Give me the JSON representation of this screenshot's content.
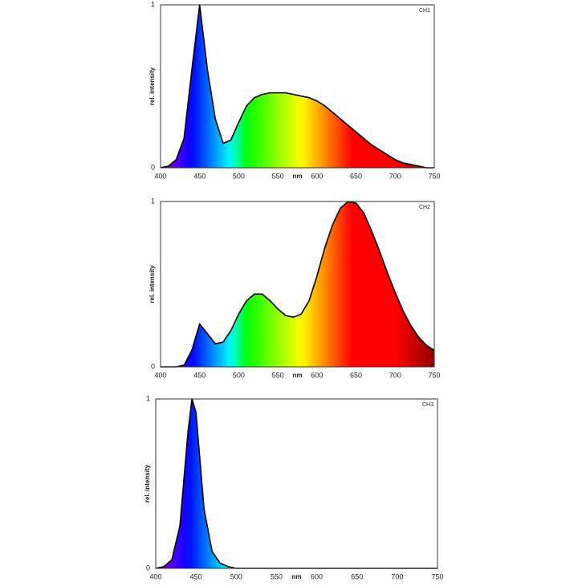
{
  "chart_data": [
    {
      "type": "area",
      "title": "CH1",
      "xlabel": "nm",
      "ylabel": "rel. intensity",
      "x": [
        400,
        410,
        420,
        430,
        440,
        450,
        460,
        470,
        480,
        490,
        500,
        510,
        520,
        530,
        540,
        550,
        560,
        570,
        580,
        590,
        600,
        610,
        620,
        630,
        640,
        650,
        660,
        670,
        680,
        690,
        700,
        710,
        720,
        730,
        740,
        750
      ],
      "values": [
        0,
        0.01,
        0.05,
        0.18,
        0.6,
        1,
        0.6,
        0.3,
        0.15,
        0.17,
        0.28,
        0.38,
        0.43,
        0.45,
        0.46,
        0.46,
        0.46,
        0.45,
        0.44,
        0.43,
        0.41,
        0.38,
        0.34,
        0.3,
        0.26,
        0.22,
        0.18,
        0.14,
        0.11,
        0.08,
        0.05,
        0.03,
        0.02,
        0.01,
        0,
        0
      ],
      "color": "#000000",
      "xlim": [
        400,
        750
      ],
      "ylim": [
        0,
        1
      ],
      "xticks": [
        400,
        450,
        500,
        550,
        600,
        650,
        700,
        750
      ],
      "yticks": [
        0,
        1
      ],
      "grid": false
    },
    {
      "type": "area",
      "title": "CH2",
      "xlabel": "nm",
      "ylabel": "rel. intensity",
      "x": [
        400,
        410,
        420,
        430,
        440,
        450,
        460,
        470,
        480,
        490,
        500,
        510,
        520,
        530,
        540,
        550,
        560,
        570,
        580,
        590,
        600,
        610,
        620,
        630,
        640,
        650,
        660,
        670,
        680,
        690,
        700,
        710,
        720,
        730,
        740,
        750
      ],
      "values": [
        0,
        0,
        0,
        0.01,
        0.1,
        0.26,
        0.2,
        0.14,
        0.15,
        0.22,
        0.32,
        0.4,
        0.44,
        0.44,
        0.4,
        0.35,
        0.31,
        0.3,
        0.32,
        0.4,
        0.55,
        0.72,
        0.86,
        0.96,
        1,
        0.99,
        0.93,
        0.82,
        0.7,
        0.57,
        0.45,
        0.34,
        0.25,
        0.18,
        0.13,
        0.1
      ],
      "color": "#000000",
      "xlim": [
        400,
        750
      ],
      "ylim": [
        0,
        1
      ],
      "xticks": [
        400,
        450,
        500,
        550,
        600,
        650,
        700,
        750
      ],
      "yticks": [
        0,
        1
      ],
      "grid": false
    },
    {
      "type": "area",
      "title": "CH3",
      "xlabel": "nm",
      "ylabel": "rel. intensity",
      "x": [
        400,
        410,
        420,
        430,
        440,
        445,
        450,
        460,
        470,
        480,
        490,
        500,
        510,
        520,
        530,
        540,
        550,
        560,
        570,
        580,
        590,
        600,
        610,
        620,
        630,
        640,
        650,
        660,
        670,
        680,
        690,
        700,
        710,
        720,
        730,
        740,
        750
      ],
      "values": [
        0,
        0.01,
        0.05,
        0.25,
        0.8,
        1,
        0.92,
        0.35,
        0.1,
        0.03,
        0.01,
        0,
        0,
        0,
        0,
        0,
        0,
        0,
        0,
        0,
        0,
        0,
        0,
        0,
        0,
        0,
        0,
        0,
        0,
        0,
        0,
        0,
        0,
        0,
        0,
        0,
        0
      ],
      "color": "#000000",
      "xlim": [
        400,
        750
      ],
      "ylim": [
        0,
        1
      ],
      "xticks": [
        400,
        450,
        500,
        550,
        600,
        650,
        700,
        750
      ],
      "yticks": [
        0,
        1
      ],
      "grid": false
    }
  ]
}
